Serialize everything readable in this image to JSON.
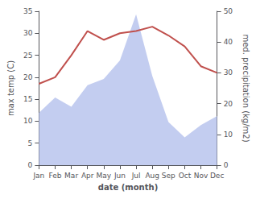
{
  "chart_data": {
    "type": "line",
    "xlabel": "date (month)",
    "ylabel": "max temp (C)",
    "y2label": "med. precipitation (kg/m2)",
    "categories": [
      "Jan",
      "Feb",
      "Mar",
      "Apr",
      "May",
      "Jun",
      "Jul",
      "Aug",
      "Sep",
      "Oct",
      "Nov",
      "Dec"
    ],
    "series": [
      {
        "type": "area",
        "axis": "y2",
        "color": "#b8c4ed",
        "values": [
          17,
          22,
          19,
          26,
          28,
          34,
          49,
          29,
          14,
          9,
          13,
          16
        ]
      },
      {
        "type": "line",
        "color": "#c0504d",
        "values": [
          18.5,
          20.0,
          25.0,
          30.5,
          28.5,
          30.0,
          30.5,
          31.5,
          29.5,
          27.0,
          22.5,
          21.0
        ]
      }
    ],
    "ylim": [
      0,
      35
    ],
    "yticks": [
      0,
      5,
      10,
      15,
      20,
      25,
      30,
      35
    ],
    "y2lim": [
      0,
      50
    ],
    "y2ticks": [
      0,
      10,
      20,
      30,
      40,
      50
    ],
    "grid": false
  }
}
